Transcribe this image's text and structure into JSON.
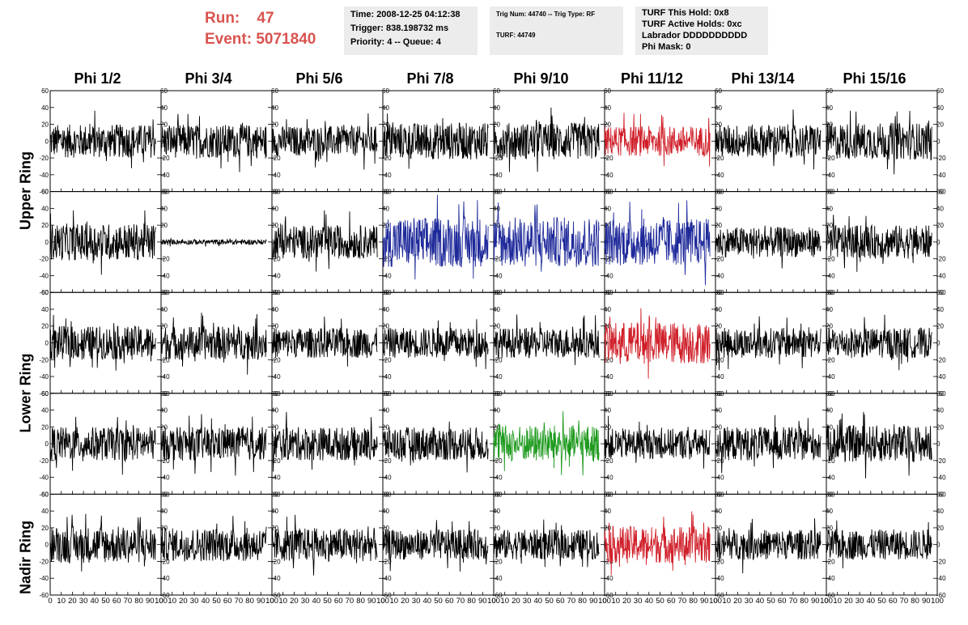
{
  "header": {
    "run_label": "Run:",
    "run_value": "47",
    "event_label": "Event:",
    "event_value": "5071840",
    "time": "Time: 2008-12-25 04:12:38",
    "trigger": "Trigger: 838.198732 ms",
    "priority": "Priority: 4 -- Queue: 4",
    "trig_num": "Trig Num: 44740 -- Trig Type: RF",
    "turf": "TURF: 44749",
    "turf_this_hold": "TURF This Hold: 0x8",
    "turf_active_holds": "TURF Active Holds: 0xc",
    "labrador": "Labrador DDDDDDDDDD",
    "phi_mask": "Phi Mask: 0"
  },
  "columns": [
    "Phi 1/2",
    "Phi 3/4",
    "Phi 5/6",
    "Phi 7/8",
    "Phi 9/10",
    "Phi 11/12",
    "Phi 13/14",
    "Phi 15/16"
  ],
  "rings": [
    "Upper Ring",
    "Lower Ring",
    "Nadir Ring"
  ],
  "colors": {
    "header_red": "#d9534f",
    "trace_default": "#000000",
    "trace_red": "#d0202a",
    "trace_blue": "#1f2a9a",
    "trace_green": "#1f9a1f"
  },
  "chart_data": {
    "type": "line",
    "rows": 5,
    "cols": 8,
    "xlim": [
      0,
      100
    ],
    "ylim": [
      -60,
      60
    ],
    "x_ticks": [
      0,
      10,
      20,
      30,
      40,
      50,
      60,
      70,
      80,
      90,
      100
    ],
    "x_tick_labels": [
      "0",
      "10",
      "20",
      "30",
      "40",
      "50",
      "60",
      "70",
      "80",
      "90",
      "100"
    ],
    "y_ticks": [
      -60,
      -40,
      -20,
      0,
      20,
      40,
      60
    ],
    "y_tick_labels": [
      "-60",
      "-40",
      "-20",
      "0",
      "20",
      "40",
      "60"
    ],
    "samples_per_trace": 256,
    "trace_x_range": [
      0,
      95
    ],
    "amplitudes": [
      [
        20,
        20,
        18,
        22,
        22,
        18,
        20,
        22
      ],
      [
        22,
        3,
        20,
        30,
        30,
        28,
        18,
        20
      ],
      [
        20,
        20,
        18,
        18,
        18,
        25,
        18,
        18
      ],
      [
        20,
        20,
        20,
        20,
        22,
        18,
        20,
        22
      ],
      [
        22,
        20,
        20,
        18,
        18,
        22,
        18,
        18
      ]
    ],
    "trace_colors": [
      [
        "black",
        "black",
        "black",
        "black",
        "black",
        "red",
        "black",
        "black"
      ],
      [
        "black",
        "black",
        "black",
        "blue",
        "blue",
        "blue",
        "black",
        "black"
      ],
      [
        "black",
        "black",
        "black",
        "black",
        "black",
        "red",
        "black",
        "black"
      ],
      [
        "black",
        "black",
        "black",
        "black",
        "green",
        "black",
        "black",
        "black"
      ],
      [
        "black",
        "black",
        "black",
        "black",
        "black",
        "red",
        "black",
        "black"
      ]
    ]
  }
}
